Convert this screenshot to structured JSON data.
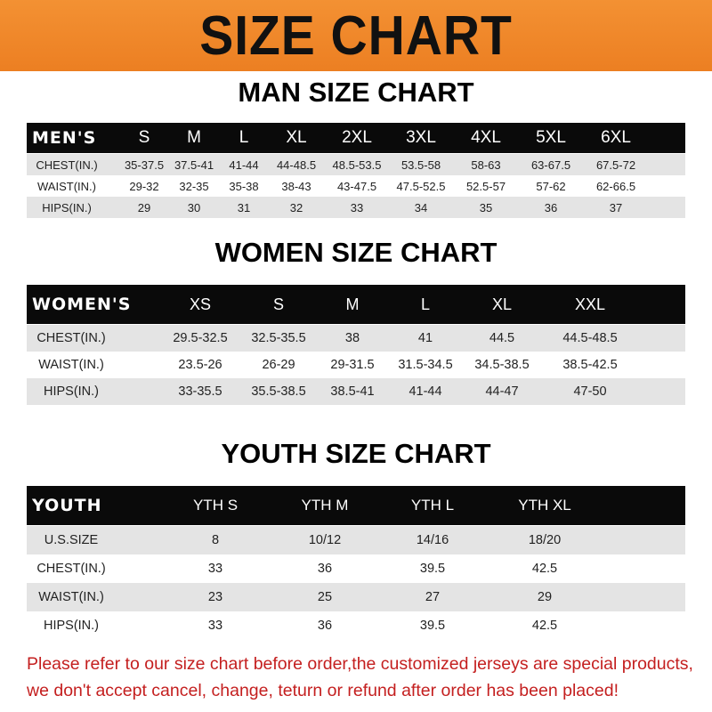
{
  "banner": "SIZE CHART",
  "men": {
    "title": "MAN SIZE CHART",
    "header": "MEN'S",
    "sizes": [
      "S",
      "M",
      "L",
      "XL",
      "2XL",
      "3XL",
      "4XL",
      "5XL",
      "6XL"
    ],
    "rows": [
      {
        "label": "CHEST(IN.)",
        "values": [
          "35-37.5",
          "37.5-41",
          "41-44",
          "44-48.5",
          "48.5-53.5",
          "53.5-58",
          "58-63",
          "63-67.5",
          "67.5-72"
        ]
      },
      {
        "label": "WAIST(IN.)",
        "values": [
          "29-32",
          "32-35",
          "35-38",
          "38-43",
          "43-47.5",
          "47.5-52.5",
          "52.5-57",
          "57-62",
          "62-66.5"
        ]
      },
      {
        "label": "HIPS(IN.)",
        "values": [
          "29",
          "30",
          "31",
          "32",
          "33",
          "34",
          "35",
          "36",
          "37"
        ]
      }
    ]
  },
  "women": {
    "title": "WOMEN SIZE CHART",
    "header": "WOMEN'S",
    "sizes": [
      "XS",
      "S",
      "M",
      "L",
      "XL",
      "XXL"
    ],
    "rows": [
      {
        "label": "CHEST(IN.)",
        "values": [
          "29.5-32.5",
          "32.5-35.5",
          "38",
          "41",
          "44.5",
          "44.5-48.5"
        ]
      },
      {
        "label": "WAIST(IN.)",
        "values": [
          "23.5-26",
          "26-29",
          "29-31.5",
          "31.5-34.5",
          "34.5-38.5",
          "38.5-42.5"
        ]
      },
      {
        "label": "HIPS(IN.)",
        "values": [
          "33-35.5",
          "35.5-38.5",
          "38.5-41",
          "41-44",
          "44-47",
          "47-50"
        ]
      }
    ]
  },
  "youth": {
    "title": "YOUTH SIZE CHART",
    "header": "YOUTH",
    "sizes": [
      "YTH S",
      "YTH M",
      "YTH L",
      "YTH XL"
    ],
    "rows": [
      {
        "label": "U.S.SIZE",
        "values": [
          "8",
          "10/12",
          "14/16",
          "18/20"
        ]
      },
      {
        "label": "CHEST(IN.)",
        "values": [
          "33",
          "36",
          "39.5",
          "42.5"
        ]
      },
      {
        "label": "WAIST(IN.)",
        "values": [
          "23",
          "25",
          "27",
          "29"
        ]
      },
      {
        "label": "HIPS(IN.)",
        "values": [
          "33",
          "36",
          "39.5",
          "42.5"
        ]
      }
    ]
  },
  "note": {
    "line1": "Please refer to our size chart before order,the customized jerseys are special products,",
    "line2": "we don't accept cancel, change, teturn or refund after order has been placed!"
  },
  "colors": {
    "banner": "#ef8628",
    "header_row": "#0a0a0a",
    "stripe": "#e4e4e4",
    "note": "#c41f1f"
  }
}
